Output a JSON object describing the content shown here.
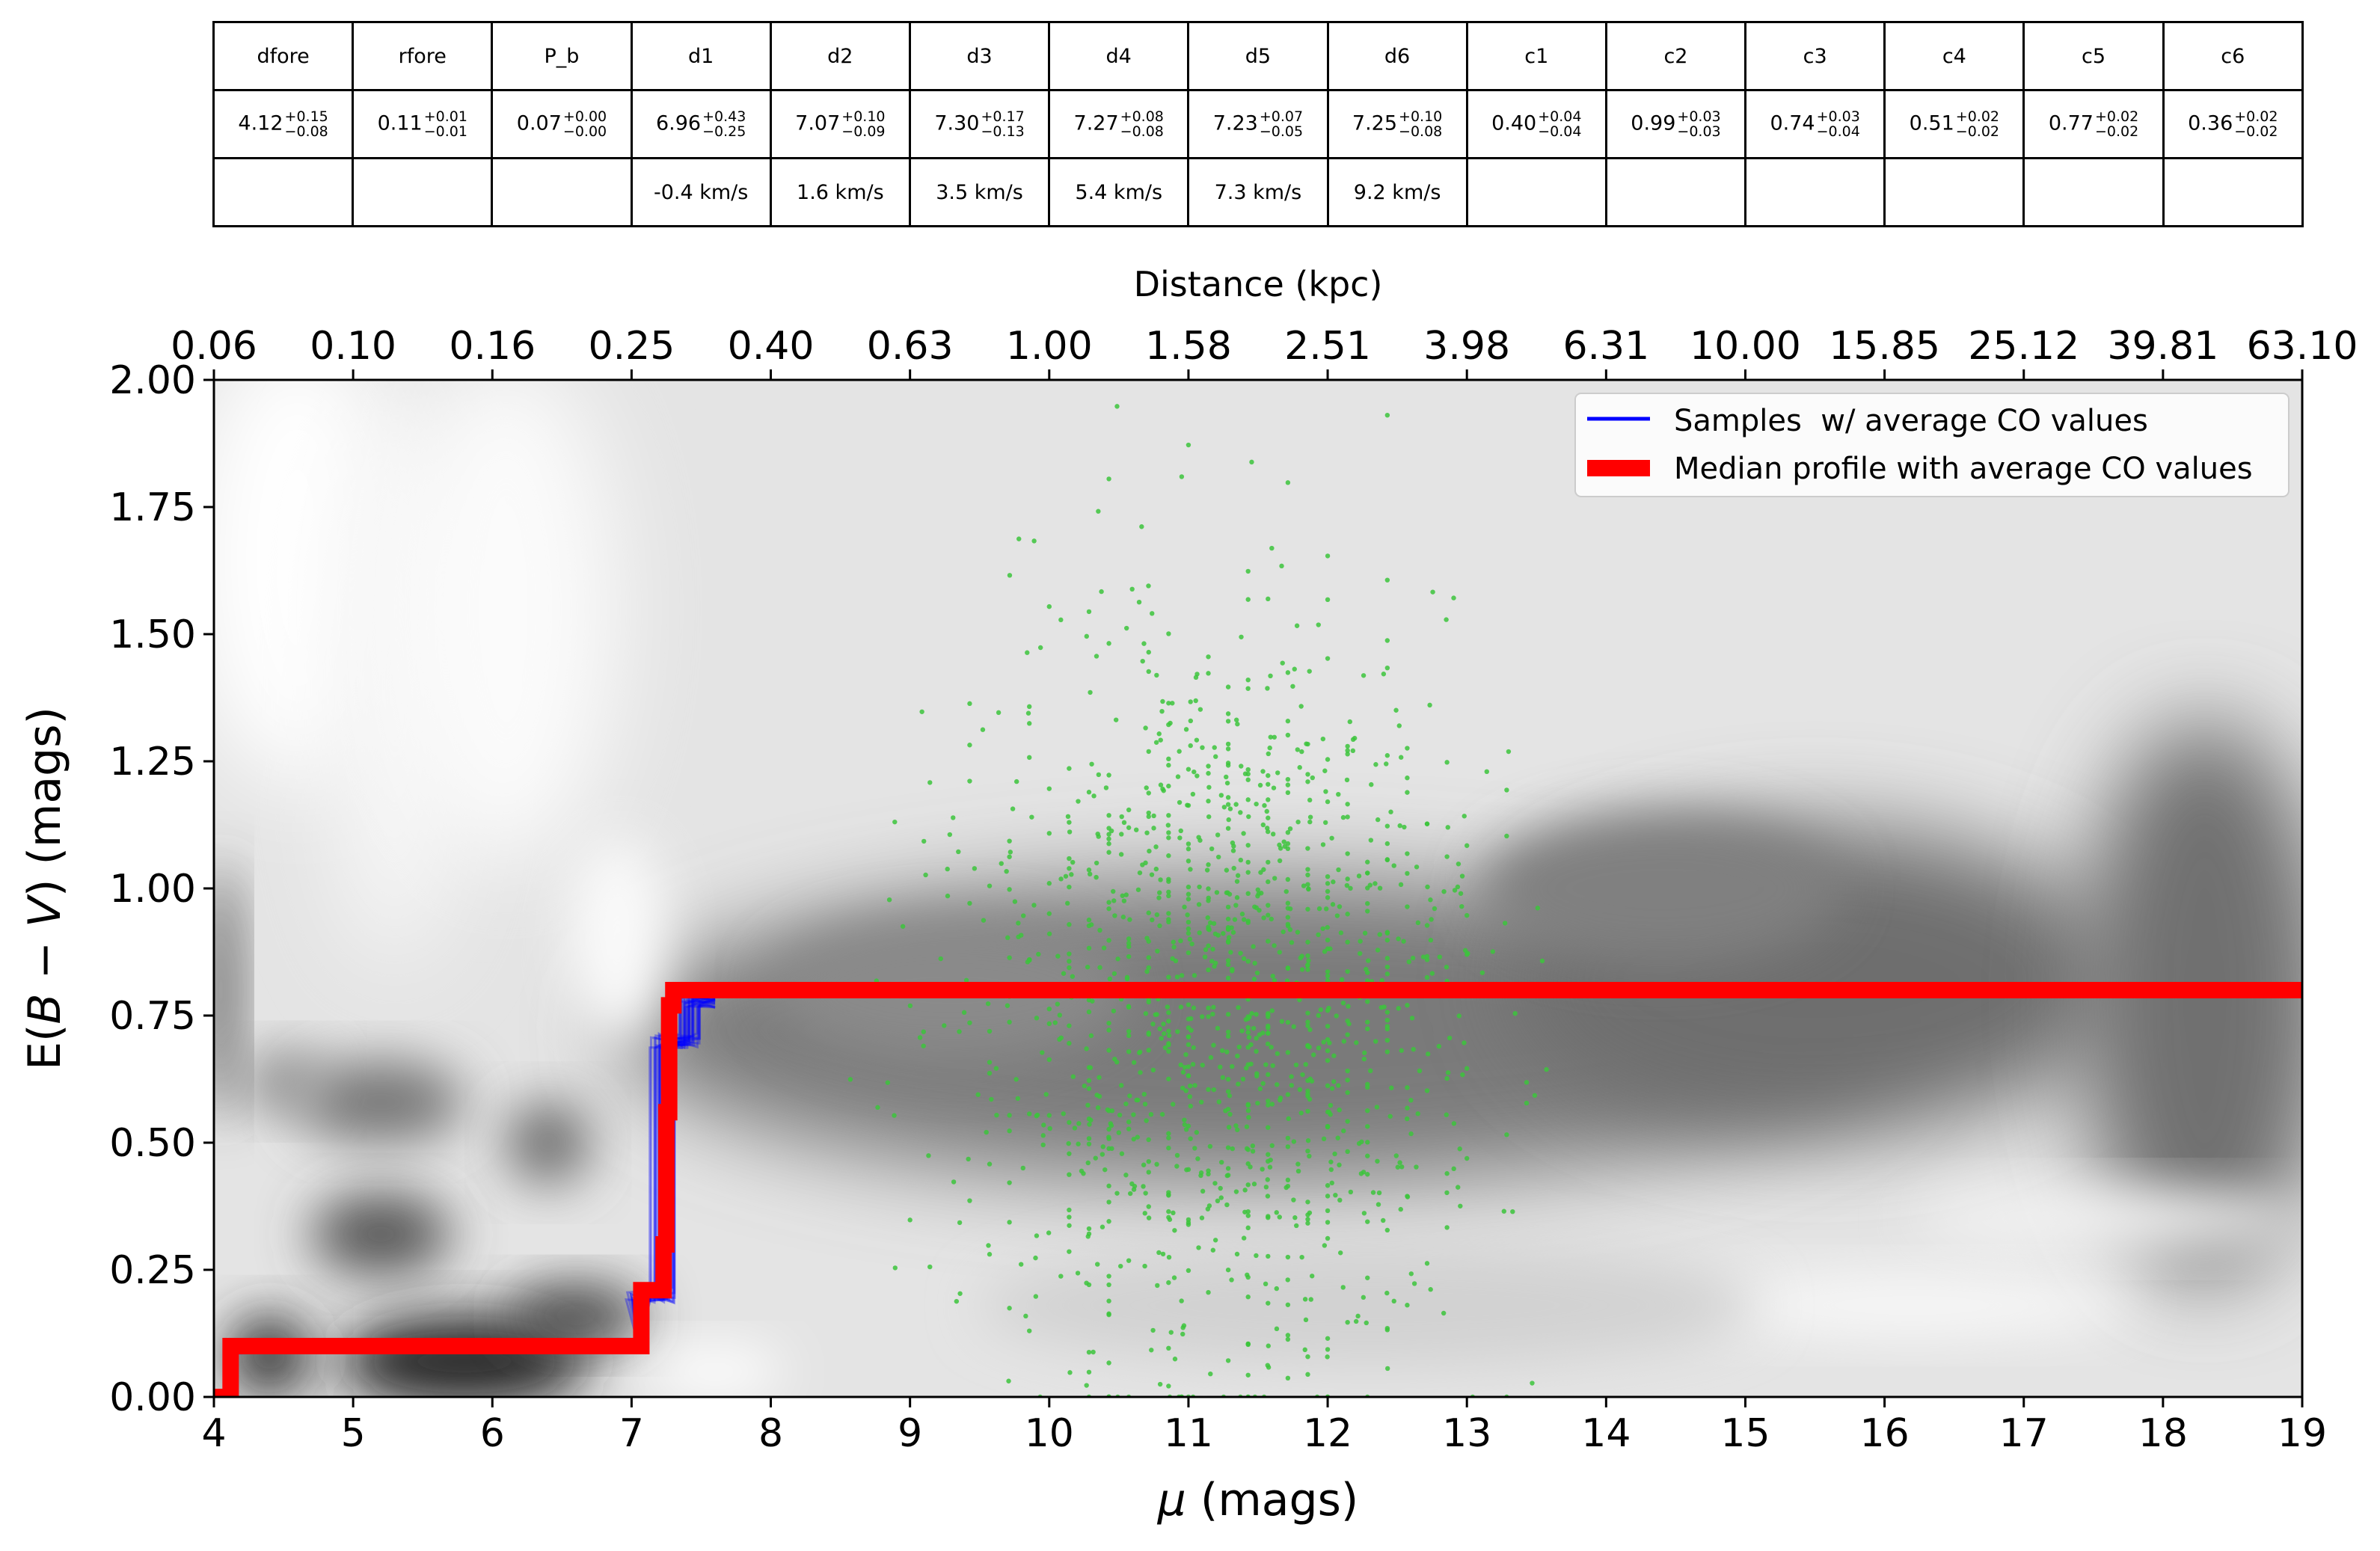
{
  "table": {
    "headers": [
      "dfore",
      "rfore",
      "P_b",
      "d1",
      "d2",
      "d3",
      "d4",
      "d5",
      "d6",
      "c1",
      "c2",
      "c3",
      "c4",
      "c5",
      "c6"
    ],
    "values": [
      {
        "v": "4.12",
        "plus": "+0.15",
        "minus": "−0.08"
      },
      {
        "v": "0.11",
        "plus": "+0.01",
        "minus": "−0.01"
      },
      {
        "v": "0.07",
        "plus": "+0.00",
        "minus": "−0.00"
      },
      {
        "v": "6.96",
        "plus": "+0.43",
        "minus": "−0.25"
      },
      {
        "v": "7.07",
        "plus": "+0.10",
        "minus": "−0.09"
      },
      {
        "v": "7.30",
        "plus": "+0.17",
        "minus": "−0.13"
      },
      {
        "v": "7.27",
        "plus": "+0.08",
        "minus": "−0.08"
      },
      {
        "v": "7.23",
        "plus": "+0.07",
        "minus": "−0.05"
      },
      {
        "v": "7.25",
        "plus": "+0.10",
        "minus": "−0.08"
      },
      {
        "v": "0.40",
        "plus": "+0.04",
        "minus": "−0.04"
      },
      {
        "v": "0.99",
        "plus": "+0.03",
        "minus": "−0.03"
      },
      {
        "v": "0.74",
        "plus": "+0.03",
        "minus": "−0.04"
      },
      {
        "v": "0.51",
        "plus": "+0.02",
        "minus": "−0.02"
      },
      {
        "v": "0.77",
        "plus": "+0.02",
        "minus": "−0.02"
      },
      {
        "v": "0.36",
        "plus": "+0.02",
        "minus": "−0.02"
      }
    ],
    "velocities": [
      "",
      "",
      "",
      "-0.4 km/s",
      "1.6 km/s",
      "3.5 km/s",
      "5.4 km/s",
      "7.3 km/s",
      "9.2 km/s",
      "",
      "",
      "",
      "",
      "",
      ""
    ]
  },
  "chart_data": {
    "type": "line",
    "xlabel_prefix": "μ",
    "xlabel_suffix": " (mags)",
    "ylabel_prefix": "E(",
    "ylabel_italic": "B − V",
    "ylabel_suffix": ") (mags)",
    "x2label": "Distance (kpc)",
    "xlim": [
      4,
      19
    ],
    "ylim": [
      0,
      2
    ],
    "x_ticks": [
      "4",
      "5",
      "6",
      "7",
      "8",
      "9",
      "10",
      "11",
      "12",
      "13",
      "14",
      "15",
      "16",
      "17",
      "18",
      "19"
    ],
    "y_ticks": [
      "0.00",
      "0.25",
      "0.50",
      "0.75",
      "1.00",
      "1.25",
      "1.50",
      "1.75",
      "2.00"
    ],
    "x2_ticks": [
      "0.06",
      "0.10",
      "0.16",
      "0.25",
      "0.40",
      "0.63",
      "1.00",
      "1.58",
      "2.51",
      "3.98",
      "6.31",
      "10.00",
      "15.85",
      "25.12",
      "39.81",
      "63.10"
    ],
    "legend_position": "top-right",
    "background": "grayscale probability density",
    "scatter_color": "#3cc43c",
    "series": [
      {
        "name": "Samples  w/ average CO values",
        "color": "#0000ff",
        "x": [
          4.0,
          4.1,
          4.1,
          7.05,
          7.05,
          7.22,
          7.22,
          7.4,
          7.4,
          7.6
        ],
        "y": [
          0.0,
          0.0,
          0.1,
          0.1,
          0.2,
          0.2,
          0.7,
          0.7,
          0.78,
          0.78
        ]
      },
      {
        "name": "Median profile with average CO values",
        "color": "#ff0000",
        "x": [
          4.0,
          4.12,
          4.12,
          7.07,
          7.07,
          7.23,
          7.23,
          7.25,
          7.25,
          7.27,
          7.27,
          7.3,
          7.3,
          19.0
        ],
        "y": [
          0.0,
          0.0,
          0.1,
          0.1,
          0.21,
          0.21,
          0.3,
          0.3,
          0.56,
          0.56,
          0.77,
          0.77,
          0.8,
          0.8
        ]
      }
    ]
  }
}
